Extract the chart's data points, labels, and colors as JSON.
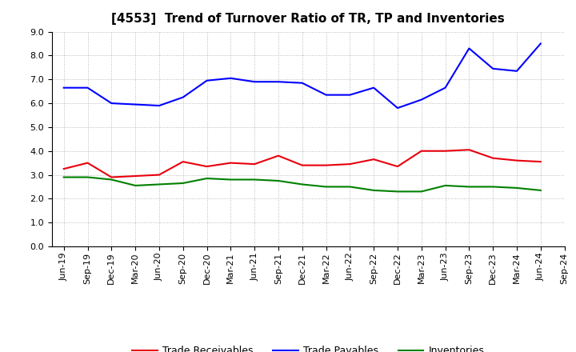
{
  "title": "[4553]  Trend of Turnover Ratio of TR, TP and Inventories",
  "x_labels": [
    "Jun-19",
    "Sep-19",
    "Dec-19",
    "Mar-20",
    "Jun-20",
    "Sep-20",
    "Dec-20",
    "Mar-21",
    "Jun-21",
    "Sep-21",
    "Dec-21",
    "Mar-22",
    "Jun-22",
    "Sep-22",
    "Dec-22",
    "Mar-23",
    "Jun-23",
    "Sep-23",
    "Dec-23",
    "Mar-24",
    "Jun-24",
    "Sep-24"
  ],
  "trade_receivables": [
    3.25,
    3.5,
    2.9,
    2.95,
    3.0,
    3.55,
    3.35,
    3.5,
    3.45,
    3.8,
    3.4,
    3.4,
    3.45,
    3.65,
    3.35,
    4.0,
    4.0,
    4.05,
    3.7,
    3.6,
    3.55,
    null
  ],
  "trade_payables": [
    6.65,
    6.65,
    6.0,
    5.95,
    5.9,
    6.25,
    6.95,
    7.05,
    6.9,
    6.9,
    6.85,
    6.35,
    6.35,
    6.65,
    5.8,
    6.15,
    6.65,
    8.3,
    7.45,
    7.35,
    8.5,
    null
  ],
  "inventories": [
    2.9,
    2.9,
    2.8,
    2.55,
    2.6,
    2.65,
    2.85,
    2.8,
    2.8,
    2.75,
    2.6,
    2.5,
    2.5,
    2.35,
    2.3,
    2.3,
    2.55,
    2.5,
    2.5,
    2.45,
    2.35,
    null
  ],
  "tr_color": "#e8000d",
  "tp_color": "#0000ff",
  "inv_color": "#008000",
  "tr_label": "Trade Receivables",
  "tp_label": "Trade Payables",
  "inv_label": "Inventories",
  "ylim": [
    0.0,
    9.0
  ],
  "yticks": [
    0.0,
    1.0,
    2.0,
    3.0,
    4.0,
    5.0,
    6.0,
    7.0,
    8.0,
    9.0
  ],
  "bg_color": "#ffffff",
  "grid_color": "#aaaaaa",
  "title_fontsize": 11,
  "legend_fontsize": 9,
  "axis_fontsize": 8
}
